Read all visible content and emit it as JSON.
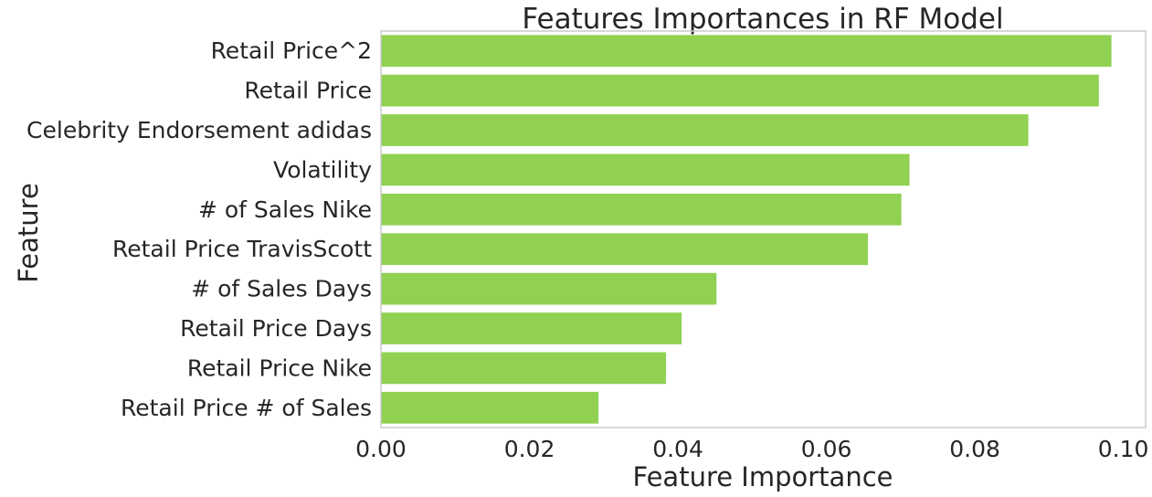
{
  "chart_data": {
    "type": "bar",
    "orientation": "horizontal",
    "title": "Features Importances in RF Model",
    "xlabel": "Feature Importance",
    "ylabel": "Feature",
    "categories": [
      "Retail Price^2",
      "Retail Price",
      "Celebrity Endorsement adidas",
      "Volatility",
      "# of Sales Nike",
      "Retail Price TravisScott",
      "# of Sales Days",
      "Retail Price Days",
      "Retail Price Nike",
      "Retail Price # of Sales"
    ],
    "values": [
      0.0984,
      0.0967,
      0.0872,
      0.0712,
      0.0701,
      0.0656,
      0.0452,
      0.0405,
      0.0384,
      0.0293
    ],
    "xlim": [
      0,
      0.103
    ],
    "xticks": [
      0.0,
      0.02,
      0.04,
      0.06,
      0.08,
      0.1
    ],
    "xtick_labels": [
      "0.00",
      "0.02",
      "0.04",
      "0.06",
      "0.08",
      "0.10"
    ],
    "bar_color": "#90d152",
    "grid": false,
    "legend": "none"
  }
}
